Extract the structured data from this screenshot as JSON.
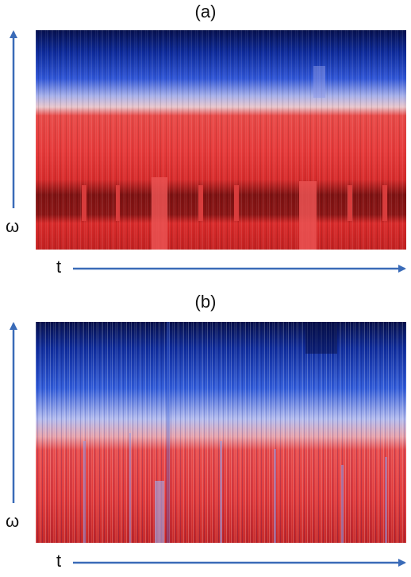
{
  "figure": {
    "panels": [
      {
        "label": "(a)",
        "x_axis_label": "t",
        "y_axis_label": "ω",
        "description_kind": "spectrogram",
        "colors": {
          "high": "#0a1a6e",
          "mid": "#c9cdf0",
          "low": "#e83a3a",
          "dark_band": "#7a1010"
        }
      },
      {
        "label": "(b)",
        "x_axis_label": "t",
        "y_axis_label": "ω",
        "description_kind": "spectrogram",
        "colors": {
          "high": "#0a1a6e",
          "mid": "#c9cdf0",
          "low": "#e83a3a"
        }
      }
    ],
    "axis_color": "#3a6bb8"
  }
}
